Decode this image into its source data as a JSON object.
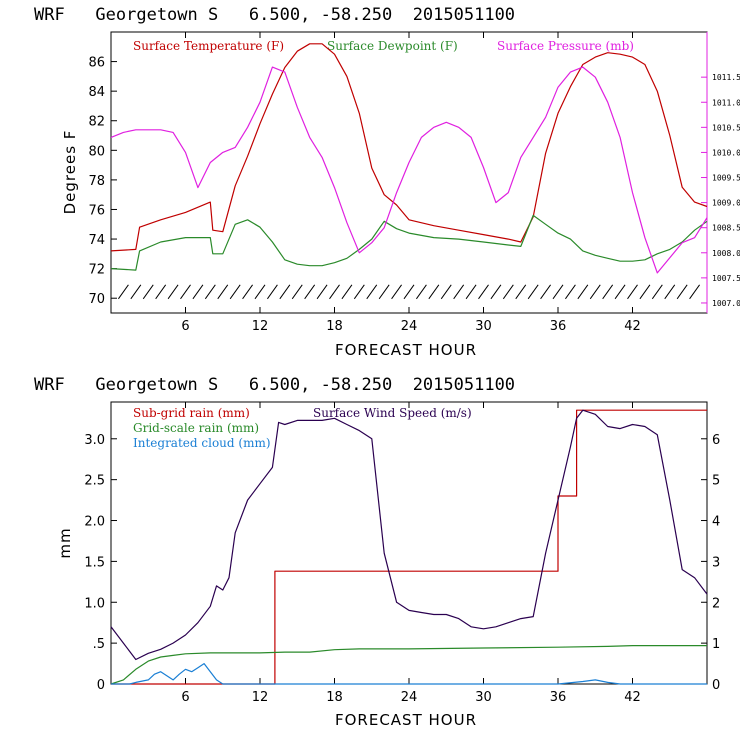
{
  "colors": {
    "temp": "#c00000",
    "dew": "#2a8a2a",
    "pressure": "#e020e0",
    "subgrid": "#c00000",
    "gridscale": "#2a8a2a",
    "cloud": "#1a7fd4",
    "wind": "#2a0050",
    "barb": "#000000"
  },
  "chart_data": [
    {
      "type": "line",
      "title": "WRF   Georgetown S   6.500, -58.250  2015051100",
      "xlabel": "FORECAST HOUR",
      "ylabel": "Degrees F",
      "xlim": [
        0,
        48
      ],
      "ylim": [
        69,
        88
      ],
      "y2lim": [
        1006.8,
        1012.4
      ],
      "x_ticks": [
        "6",
        "12",
        "18",
        "24",
        "30",
        "36",
        "42"
      ],
      "y_ticks": [
        "70",
        "72",
        "74",
        "76",
        "78",
        "80",
        "82",
        "84",
        "86"
      ],
      "y2_ticks": [
        "1007.0",
        "1007.5",
        "1008.0",
        "1008.5",
        "1009.0",
        "1009.5",
        "1010.0",
        "1010.5",
        "1011.0",
        "1011.5"
      ],
      "legend": [
        "Surface Temperature (F)",
        "Surface Dewpoint (F)",
        "Surface Pressure (mb)"
      ],
      "series": [
        {
          "name": "Surface Temperature (F)",
          "axis": "left",
          "x": [
            0,
            2,
            2.3,
            4,
            6,
            8,
            8.2,
            9,
            10,
            11,
            12,
            13,
            14,
            15,
            16,
            17,
            18,
            19,
            20,
            21,
            22,
            23,
            24,
            26,
            28,
            30,
            32,
            33,
            34,
            35,
            36,
            37,
            38,
            39,
            40,
            41,
            42,
            43,
            44,
            45,
            46,
            47,
            48
          ],
          "y": [
            73.2,
            73.3,
            74.8,
            75.3,
            75.8,
            76.5,
            74.6,
            74.5,
            77.6,
            79.6,
            81.8,
            83.8,
            85.6,
            86.7,
            87.2,
            87.2,
            86.5,
            85.0,
            82.5,
            78.8,
            77.0,
            76.3,
            75.3,
            74.9,
            74.6,
            74.3,
            74.0,
            73.8,
            75.5,
            79.8,
            82.5,
            84.3,
            85.8,
            86.3,
            86.6,
            86.5,
            86.3,
            85.8,
            84.0,
            81.0,
            77.5,
            76.5,
            76.2
          ]
        },
        {
          "name": "Surface Dewpoint (F)",
          "axis": "left",
          "x": [
            0,
            2,
            2.3,
            4,
            6,
            8,
            8.2,
            9,
            10,
            11,
            12,
            13,
            14,
            15,
            16,
            17,
            18,
            19,
            20,
            21,
            22,
            23,
            24,
            26,
            28,
            30,
            32,
            33,
            34,
            35,
            36,
            37,
            38,
            39,
            40,
            41,
            42,
            43,
            44,
            45,
            46,
            47,
            48
          ],
          "y": [
            72.0,
            71.9,
            73.2,
            73.8,
            74.1,
            74.1,
            73.0,
            73.0,
            75.0,
            75.3,
            74.8,
            73.8,
            72.6,
            72.3,
            72.2,
            72.2,
            72.4,
            72.7,
            73.3,
            74.0,
            75.2,
            74.7,
            74.4,
            74.1,
            74.0,
            73.8,
            73.6,
            73.5,
            75.6,
            75.0,
            74.4,
            74.0,
            73.2,
            72.9,
            72.7,
            72.5,
            72.5,
            72.6,
            73.0,
            73.3,
            73.8,
            74.6,
            75.2
          ]
        },
        {
          "name": "Surface Pressure (mb)",
          "axis": "right",
          "x": [
            0,
            1,
            2,
            3,
            4,
            5,
            6,
            7,
            8,
            9,
            10,
            11,
            12,
            13,
            14,
            15,
            16,
            17,
            18,
            19,
            20,
            21,
            22,
            23,
            24,
            25,
            26,
            27,
            28,
            29,
            30,
            31,
            32,
            33,
            34,
            35,
            36,
            37,
            38,
            39,
            40,
            41,
            42,
            43,
            44,
            45,
            46,
            47,
            48
          ],
          "y": [
            1010.3,
            1010.4,
            1010.45,
            1010.45,
            1010.45,
            1010.4,
            1010.0,
            1009.3,
            1009.8,
            1010.0,
            1010.1,
            1010.5,
            1011.0,
            1011.7,
            1011.6,
            1010.9,
            1010.3,
            1009.9,
            1009.3,
            1008.6,
            1008.0,
            1008.2,
            1008.5,
            1009.2,
            1009.8,
            1010.3,
            1010.5,
            1010.6,
            1010.5,
            1010.3,
            1009.7,
            1009.0,
            1009.2,
            1009.9,
            1010.3,
            1010.7,
            1011.3,
            1011.6,
            1011.7,
            1011.5,
            1011.0,
            1010.3,
            1009.2,
            1008.3,
            1007.6,
            1007.9,
            1008.2,
            1008.3,
            1008.7
          ]
        }
      ],
      "wind_barbs_hours": [
        1,
        2,
        3,
        4,
        5,
        6,
        7,
        8,
        9,
        10,
        11,
        12,
        13,
        14,
        15,
        16,
        17,
        18,
        19,
        20,
        21,
        22,
        23,
        24,
        25,
        26,
        27,
        28,
        29,
        30,
        31,
        32,
        33,
        34,
        35,
        36,
        37,
        38,
        39,
        40,
        41,
        42,
        43,
        44,
        45,
        46,
        47
      ]
    },
    {
      "type": "line",
      "title": "WRF   Georgetown S   6.500, -58.250  2015051100",
      "xlabel": "FORECAST HOUR",
      "ylabel": "mm",
      "xlim": [
        0,
        48
      ],
      "ylim": [
        0,
        3.45
      ],
      "y2lim": [
        0,
        6.9
      ],
      "x_ticks": [
        "6",
        "12",
        "18",
        "24",
        "30",
        "36",
        "42"
      ],
      "y_ticks": [
        "0",
        ".5",
        "1.0",
        "1.5",
        "2.0",
        "2.5",
        "3.0"
      ],
      "y2_ticks": [
        "0",
        "1",
        "2",
        "3",
        "4",
        "5",
        "6"
      ],
      "legend": [
        "Sub-grid rain (mm)",
        "Grid-scale rain (mm)",
        "Integrated cloud (mm)",
        "Surface Wind Speed (m/s)"
      ],
      "series": [
        {
          "name": "Sub-grid rain (mm)",
          "axis": "left",
          "x": [
            0,
            13.2,
            13.2,
            36,
            36,
            37.5,
            37.5,
            48
          ],
          "y": [
            0,
            0,
            1.38,
            1.38,
            2.3,
            2.3,
            3.35,
            3.35
          ]
        },
        {
          "name": "Grid-scale rain (mm)",
          "axis": "left",
          "x": [
            0,
            1,
            2,
            3,
            4,
            5,
            6,
            8,
            10,
            12,
            14,
            16,
            18,
            20,
            24,
            30,
            36,
            40,
            42,
            44,
            48
          ],
          "y": [
            0,
            0.05,
            0.18,
            0.28,
            0.33,
            0.35,
            0.37,
            0.38,
            0.38,
            0.38,
            0.39,
            0.39,
            0.42,
            0.43,
            0.43,
            0.44,
            0.45,
            0.46,
            0.47,
            0.47,
            0.47
          ]
        },
        {
          "name": "Integrated cloud (mm)",
          "axis": "left",
          "x": [
            0,
            1.5,
            2,
            3,
            3.5,
            4,
            5,
            5.5,
            6,
            6.5,
            7,
            7.5,
            8,
            8.5,
            9,
            10,
            12,
            24,
            36,
            38,
            39,
            40,
            41,
            48
          ],
          "y": [
            0,
            0,
            0.02,
            0.05,
            0.12,
            0.15,
            0.05,
            0.12,
            0.18,
            0.15,
            0.2,
            0.25,
            0.15,
            0.05,
            0,
            0,
            0,
            0,
            0,
            0.03,
            0.05,
            0.02,
            0,
            0
          ]
        },
        {
          "name": "Surface Wind Speed (m/s)",
          "axis": "right",
          "x": [
            0,
            1,
            2,
            3,
            4,
            5,
            6,
            7,
            8,
            8.5,
            9,
            9.5,
            10,
            11,
            12,
            13,
            13.5,
            14,
            15,
            16,
            17,
            18,
            19,
            20,
            21,
            22,
            23,
            24,
            25,
            26,
            27,
            28,
            29,
            30,
            31,
            32,
            33,
            34,
            35,
            36,
            37,
            37.5,
            38,
            39,
            40,
            41,
            42,
            43,
            44,
            45,
            46,
            47,
            48
          ],
          "y": [
            1.4,
            1.0,
            0.6,
            0.75,
            0.85,
            1.0,
            1.2,
            1.5,
            1.9,
            2.4,
            2.3,
            2.6,
            3.7,
            4.5,
            4.9,
            5.3,
            6.4,
            6.35,
            6.45,
            6.45,
            6.45,
            6.5,
            6.35,
            6.2,
            6.0,
            3.2,
            2.0,
            1.8,
            1.75,
            1.7,
            1.7,
            1.6,
            1.4,
            1.35,
            1.4,
            1.5,
            1.6,
            1.65,
            3.2,
            4.5,
            5.8,
            6.5,
            6.7,
            6.6,
            6.3,
            6.25,
            6.35,
            6.3,
            6.1,
            4.5,
            2.8,
            2.6,
            2.2
          ]
        }
      ]
    }
  ]
}
